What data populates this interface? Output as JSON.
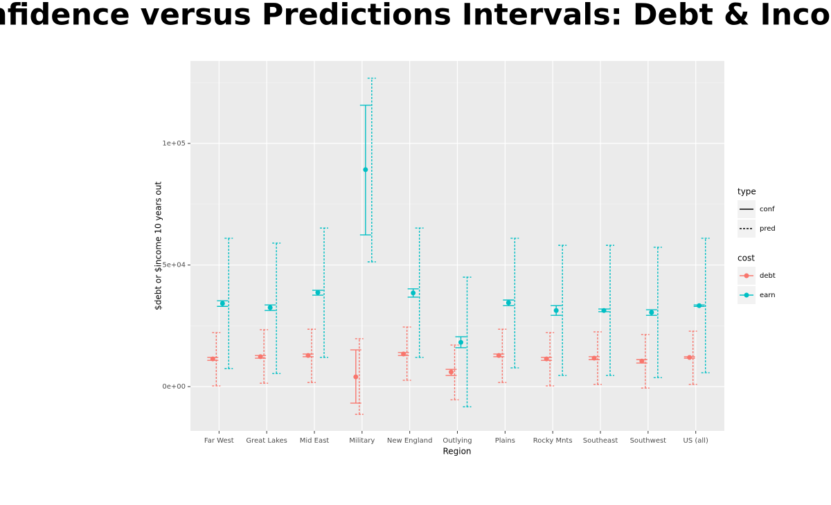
{
  "chart_data": {
    "type": "errorbar",
    "title": "Confidence versus Predictions Intervals: Debt & Income",
    "x_label": "Region",
    "y_label": "$debt or $income 10 years out",
    "categories": [
      "Far West",
      "Great Lakes",
      "Mid East",
      "Military",
      "New England",
      "Outlying",
      "Plains",
      "Rocky Mnts",
      "Southeast",
      "Southwest",
      "US (all)"
    ],
    "ylim": [
      -18200,
      133900
    ],
    "yticks": [
      {
        "value": 0,
        "label": "0e+00"
      },
      {
        "value": 50000,
        "label": "5e+04"
      },
      {
        "value": 100000,
        "label": "1e+05"
      }
    ],
    "minor_grid": [
      25000,
      75000,
      125000
    ],
    "grid": true,
    "legend_position": "right",
    "linetype_legend": {
      "title": "type",
      "entries": [
        "conf",
        "pred"
      ]
    },
    "color_legend_title": "cost",
    "series": [
      {
        "name": "debt",
        "color": "#F8766D",
        "values": [
          11400,
          12300,
          12800,
          4000,
          13400,
          6000,
          12800,
          11400,
          11700,
          10500,
          12000
        ],
        "conf_low": [
          10800,
          11700,
          12300,
          -6800,
          12800,
          4600,
          12300,
          10800,
          11100,
          9700,
          11700
        ],
        "conf_high": [
          12000,
          12800,
          13400,
          15100,
          14000,
          7100,
          13400,
          12000,
          12300,
          11100,
          12300
        ],
        "pred_low": [
          300,
          1400,
          1700,
          -11400,
          2600,
          -5400,
          1700,
          300,
          900,
          -600,
          900
        ],
        "pred_high": [
          22200,
          23400,
          23600,
          19700,
          24500,
          17100,
          23600,
          22200,
          22500,
          21400,
          22800
        ]
      },
      {
        "name": "earn",
        "color": "#00BFC4",
        "values": [
          34200,
          32500,
          38700,
          89200,
          38500,
          18200,
          34500,
          31300,
          31300,
          30500,
          33300
        ],
        "conf_low": [
          33000,
          31300,
          37600,
          62400,
          36800,
          16000,
          33300,
          29300,
          30800,
          29300,
          33000
        ],
        "conf_high": [
          35300,
          33600,
          39600,
          115700,
          40200,
          20500,
          35600,
          33300,
          31900,
          31600,
          33600
        ],
        "pred_low": [
          7400,
          5400,
          12000,
          51300,
          12000,
          -8300,
          7700,
          4600,
          4600,
          3700,
          5700
        ],
        "pred_high": [
          61000,
          59000,
          65200,
          126800,
          65200,
          45000,
          61000,
          58100,
          58100,
          57300,
          61000
        ]
      }
    ]
  }
}
